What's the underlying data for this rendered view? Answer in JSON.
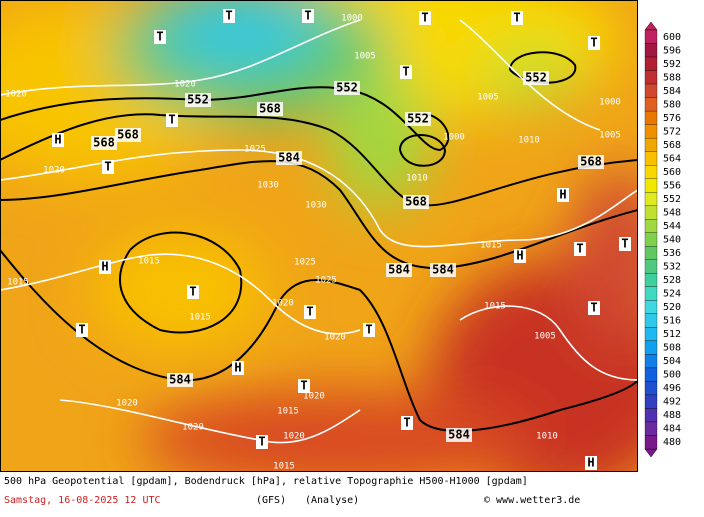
{
  "map": {
    "geopotential_labels": [
      552,
      552,
      552,
      552,
      568,
      568,
      568,
      568,
      568,
      584,
      584,
      584,
      584,
      584
    ],
    "pressure_labels": [
      1020,
      1025,
      1030,
      1030,
      1025,
      1025,
      1020,
      1020,
      1015,
      1015,
      1015,
      1020,
      1020,
      1020,
      1015,
      1020,
      1015,
      1010,
      1005,
      1010,
      1005,
      1000,
      1005,
      1005,
      1000,
      1015,
      1015,
      1010,
      1000,
      1020,
      1020
    ],
    "centers": [
      "H",
      "H",
      "H",
      "H",
      "H",
      "H",
      "T",
      "T",
      "T",
      "T",
      "T",
      "T",
      "T",
      "T",
      "T",
      "T",
      "T",
      "T",
      "T",
      "T",
      "T",
      "T",
      "T",
      "T",
      "T"
    ]
  },
  "colorbar": {
    "levels": [
      600,
      596,
      592,
      588,
      584,
      580,
      576,
      572,
      568,
      564,
      560,
      556,
      552,
      548,
      544,
      540,
      536,
      532,
      528,
      524,
      520,
      516,
      512,
      508,
      504,
      500,
      496,
      492,
      488,
      484,
      480
    ],
    "colors": [
      "#c02060",
      "#a01840",
      "#b02030",
      "#c03030",
      "#d04830",
      "#e06020",
      "#e87800",
      "#f09000",
      "#f0a800",
      "#f8c000",
      "#f8d800",
      "#f0e800",
      "#e0e820",
      "#c0e030",
      "#a0d840",
      "#80d050",
      "#60c860",
      "#50c880",
      "#40d0a0",
      "#40d8c0",
      "#40d8e0",
      "#30c8e8",
      "#20b8f0",
      "#10a0f0",
      "#1080e8",
      "#1060e0",
      "#2050d0",
      "#3040c0",
      "#5030b0",
      "#6a2aa0",
      "#7a1a8a"
    ]
  },
  "footer": {
    "description": "500 hPa Geopotential [gpdam], Bodendruck [hPa], relative Topographie H500-H1000 [gpdam]",
    "date": "Samstag, 16-08-2025  12 UTC",
    "model": "(GFS)",
    "run": "(Analyse)",
    "copyright": "© www.wetter3.de"
  }
}
